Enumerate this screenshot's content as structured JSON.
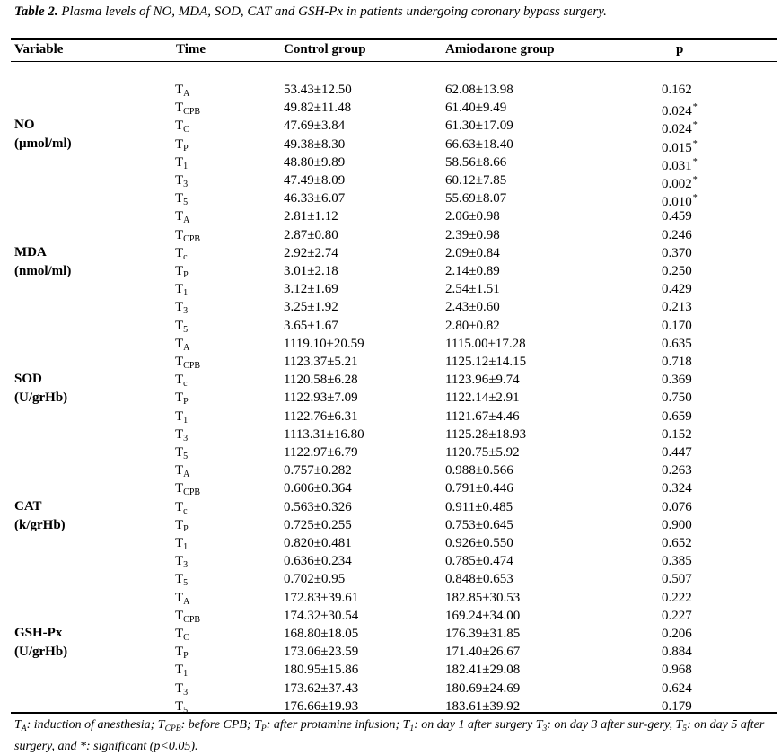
{
  "caption": {
    "label": "Table 2.",
    "text": "Plasma levels of NO, MDA, SOD, CAT and GSH-Px in patients undergoing coronary bypass surgery."
  },
  "headers": {
    "variable": "Variable",
    "time": "Time",
    "control": "Control group",
    "amiodarone": "Amiodarone group",
    "p": "p"
  },
  "groups": [
    {
      "name": "NO",
      "unit": "(µmol/ml)",
      "rows": [
        {
          "t": "T",
          "sub": "A",
          "control": "53.43±12.50",
          "amio": "62.08±13.98",
          "p": "0.162",
          "sig": ""
        },
        {
          "t": "T",
          "sub": "CPB",
          "control": "49.82±11.48",
          "amio": "61.40±9.49",
          "p": "0.024",
          "sig": "*"
        },
        {
          "t": "T",
          "sub": "C",
          "control": "47.69±3.84",
          "amio": "61.30±17.09",
          "p": "0.024",
          "sig": "*"
        },
        {
          "t": "T",
          "sub": "P",
          "control": "49.38±8.30",
          "amio": "66.63±18.40",
          "p": "0.015",
          "sig": "*"
        },
        {
          "t": "T",
          "sub": "1",
          "control": "48.80±9.89",
          "amio": "58.56±8.66",
          "p": "0.031",
          "sig": "*"
        },
        {
          "t": "T",
          "sub": "3",
          "control": "47.49±8.09",
          "amio": "60.12±7.85",
          "p": "0.002",
          "sig": "*"
        },
        {
          "t": "T",
          "sub": "5",
          "control": "46.33±6.07",
          "amio": "55.69±8.07",
          "p": "0.010",
          "sig": "*"
        }
      ]
    },
    {
      "name": "MDA",
      "unit": "(nmol/ml)",
      "rows": [
        {
          "t": "T",
          "sub": "A",
          "control": "2.81±1.12",
          "amio": "2.06±0.98",
          "p": "0.459",
          "sig": ""
        },
        {
          "t": "T",
          "sub": "CPB",
          "control": "2.87±0.80",
          "amio": "2.39±0.98",
          "p": "0.246",
          "sig": ""
        },
        {
          "t": "T",
          "sub": "c",
          "control": "2.92±2.74",
          "amio": "2.09±0.84",
          "p": "0.370",
          "sig": ""
        },
        {
          "t": "T",
          "sub": "P",
          "control": "3.01±2.18",
          "amio": "2.14±0.89",
          "p": "0.250",
          "sig": ""
        },
        {
          "t": "T",
          "sub": "1",
          "control": "3.12±1.69",
          "amio": "2.54±1.51",
          "p": "0.429",
          "sig": ""
        },
        {
          "t": "T",
          "sub": "3",
          "control": "3.25±1.92",
          "amio": "2.43±0.60",
          "p": "0.213",
          "sig": ""
        },
        {
          "t": "T",
          "sub": "5",
          "control": "3.65±1.67",
          "amio": "2.80±0.82",
          "p": "0.170",
          "sig": ""
        }
      ]
    },
    {
      "name": "SOD",
      "unit": "(U/grHb)",
      "rows": [
        {
          "t": "T",
          "sub": "A",
          "control": "1119.10±20.59",
          "amio": "1115.00±17.28",
          "p": "0.635",
          "sig": ""
        },
        {
          "t": "T",
          "sub": "CPB",
          "control": "1123.37±5.21",
          "amio": "1125.12±14.15",
          "p": "0.718",
          "sig": ""
        },
        {
          "t": "T",
          "sub": "c",
          "control": "1120.58±6.28",
          "amio": "1123.96±9.74",
          "p": "0.369",
          "sig": ""
        },
        {
          "t": "T",
          "sub": "P",
          "control": "1122.93±7.09",
          "amio": "1122.14±2.91",
          "p": "0.750",
          "sig": ""
        },
        {
          "t": "T",
          "sub": "1",
          "control": "1122.76±6.31",
          "amio": "1121.67±4.46",
          "p": "0.659",
          "sig": ""
        },
        {
          "t": "T",
          "sub": "3",
          "control": "1113.31±16.80",
          "amio": "1125.28±18.93",
          "p": "0.152",
          "sig": ""
        },
        {
          "t": "T",
          "sub": "5",
          "control": "1122.97±6.79",
          "amio": "1120.75±5.92",
          "p": "0.447",
          "sig": ""
        }
      ]
    },
    {
      "name": "CAT",
      "unit": "(k/grHb)",
      "rows": [
        {
          "t": "T",
          "sub": "A",
          "control": "0.757±0.282",
          "amio": "0.988±0.566",
          "p": "0.263",
          "sig": ""
        },
        {
          "t": "T",
          "sub": "CPB",
          "control": "0.606±0.364",
          "amio": "0.791±0.446",
          "p": "0.324",
          "sig": ""
        },
        {
          "t": "T",
          "sub": "c",
          "control": "0.563±0.326",
          "amio": "0.911±0.485",
          "p": "0.076",
          "sig": ""
        },
        {
          "t": "T",
          "sub": "P",
          "control": "0.725±0.255",
          "amio": "0.753±0.645",
          "p": "0.900",
          "sig": ""
        },
        {
          "t": "T",
          "sub": "1",
          "control": "0.820±0.481",
          "amio": "0.926±0.550",
          "p": "0.652",
          "sig": ""
        },
        {
          "t": "T",
          "sub": "3",
          "control": "0.636±0.234",
          "amio": "0.785±0.474",
          "p": "0.385",
          "sig": ""
        },
        {
          "t": "T",
          "sub": "5",
          "control": "0.702±0.95",
          "amio": "0.848±0.653",
          "p": "0.507",
          "sig": ""
        }
      ]
    },
    {
      "name": "GSH-Px",
      "unit": "(U/grHb)",
      "rows": [
        {
          "t": "T",
          "sub": "A",
          "control": "172.83±39.61",
          "amio": "182.85±30.53",
          "p": "0.222",
          "sig": ""
        },
        {
          "t": "T",
          "sub": "CPB",
          "control": "174.32±30.54",
          "amio": "169.24±34.00",
          "p": "0.227",
          "sig": ""
        },
        {
          "t": "T",
          "sub": "C",
          "control": "168.80±18.05",
          "amio": "176.39±31.85",
          "p": "0.206",
          "sig": ""
        },
        {
          "t": "T",
          "sub": "P",
          "control": "173.06±23.59",
          "amio": "171.40±26.67",
          "p": "0.884",
          "sig": ""
        },
        {
          "t": "T",
          "sub": "1",
          "control": "180.95±15.86",
          "amio": "182.41±29.08",
          "p": "0.968",
          "sig": ""
        },
        {
          "t": "T",
          "sub": "3",
          "control": "173.62±37.43",
          "amio": "180.69±24.69",
          "p": "0.624",
          "sig": ""
        },
        {
          "t": "T",
          "sub": "5",
          "control": "176.66±19.93",
          "amio": "183.61±39.92",
          "p": "0.179",
          "sig": ""
        }
      ]
    }
  ],
  "footnote": {
    "parts": [
      {
        "text": "T"
      },
      {
        "sub": "A"
      },
      {
        "text": ": induction of anesthesia; T"
      },
      {
        "sub": "CPB"
      },
      {
        "text": ": before CPB; T"
      },
      {
        "sub": "P"
      },
      {
        "text": ": after protamine infusion; T"
      },
      {
        "sub": "1"
      },
      {
        "text": ": on day 1 after surgery T"
      },
      {
        "sub": "3"
      },
      {
        "text": ": on day 3 after sur-gery, T"
      },
      {
        "sub": "5"
      },
      {
        "text": ": on day 5 after surgery, and *: significant (p<0.05)."
      }
    ]
  }
}
